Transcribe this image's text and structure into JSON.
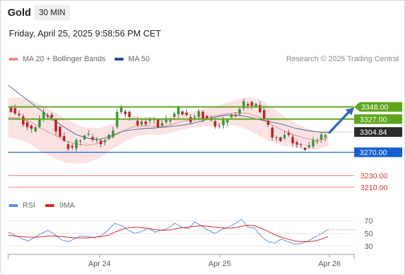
{
  "header": {
    "title": "Gold",
    "timeframe_button": "30 MIN"
  },
  "timestamp": "Friday, April 25, 2025 9:58:56 PM CET",
  "legend": {
    "price": [
      {
        "label": "MA 20 + Bollinger Bands",
        "color": "#f28b8b"
      },
      {
        "label": "MA 50",
        "color": "#1f4e8c"
      }
    ],
    "rsi": [
      {
        "label": "RSI",
        "color": "#5b8fe0"
      },
      {
        "label": "9MA",
        "color": "#e02020"
      }
    ]
  },
  "credit": "Research © 2025 Trading Central",
  "colors": {
    "up": "#2e9e2e",
    "down": "#c82020",
    "resistance": "#5fa51c",
    "support": "#1460d2",
    "target": "#f0807a",
    "arrow": "#2a6bbf"
  },
  "chart_data": [
    {
      "type": "candlestick",
      "title": "Gold",
      "x_ticks": [
        "Apr 24",
        "Apr 25",
        "Apr 26"
      ],
      "y_range": [
        3200,
        3420
      ],
      "series": [
        {
          "name": "MA 20 + Bollinger Bands",
          "values": [
            3330,
            3328,
            3322,
            3310,
            3300,
            3290,
            3284,
            3282,
            3286,
            3296,
            3306,
            3314,
            3316,
            3314,
            3316,
            3322,
            3326,
            3329,
            3332,
            3336,
            3338,
            3337,
            3330,
            3318,
            3308,
            3300,
            3294,
            3290,
            3295
          ]
        },
        {
          "name": "MA 50",
          "values": [
            3385,
            3370,
            3355,
            3340,
            3325,
            3312,
            3300,
            3294,
            3292,
            3298,
            3306,
            3309,
            3311,
            3312,
            3314,
            3316,
            3319,
            3324,
            3330,
            3334,
            3334,
            3331,
            3326,
            3322,
            3318,
            3312,
            3308,
            3305,
            3304
          ]
        }
      ],
      "levels": [
        {
          "label": "3348.00",
          "value": 3348,
          "kind": "resistance"
        },
        {
          "label": "3327.00",
          "value": 3327,
          "kind": "resistance"
        },
        {
          "label": "3304.84",
          "value": 3304.84,
          "kind": "last price"
        },
        {
          "label": "3270.00",
          "value": 3270,
          "kind": "support"
        },
        {
          "label": "3230.00",
          "value": 3230,
          "kind": "target"
        },
        {
          "label": "3210.00",
          "value": 3210,
          "kind": "target"
        }
      ],
      "close_path": [
        3345,
        3333,
        3320,
        3305,
        3322,
        3336,
        3330,
        3304,
        3285,
        3276,
        3290,
        3298,
        3295,
        3288,
        3291,
        3300,
        3345,
        3340,
        3325,
        3318,
        3323,
        3330,
        3317,
        3322,
        3330,
        3343,
        3334,
        3326,
        3338,
        3330,
        3322,
        3313,
        3325,
        3333,
        3342,
        3358,
        3350,
        3348,
        3323,
        3298,
        3292,
        3302,
        3291,
        3280,
        3277,
        3284,
        3294,
        3305
      ]
    },
    {
      "type": "line",
      "title": "RSI",
      "y_ticks": [
        "70",
        "50",
        "30"
      ],
      "x_ticks": [
        "Apr 24",
        "Apr 25",
        "Apr 26"
      ],
      "y_range": [
        20,
        80
      ],
      "series": [
        {
          "name": "RSI",
          "values": [
            52,
            47,
            42,
            38,
            44,
            50,
            55,
            48,
            40,
            37,
            42,
            46,
            45,
            43,
            47,
            55,
            66,
            62,
            55,
            50,
            53,
            58,
            52,
            55,
            58,
            66,
            60,
            57,
            68,
            62,
            55,
            50,
            56,
            60,
            65,
            72,
            60,
            58,
            45,
            37,
            35,
            41,
            37,
            33,
            34,
            38,
            44,
            50,
            56
          ]
        },
        {
          "name": "9MA",
          "values": [
            47,
            46,
            45,
            44,
            44,
            45,
            46,
            46,
            45,
            44,
            43,
            43,
            43,
            44,
            45,
            47,
            52,
            56,
            59,
            60,
            59,
            58,
            56,
            55,
            55,
            57,
            59,
            60,
            61,
            62,
            61,
            60,
            59,
            58,
            59,
            61,
            63,
            62,
            58,
            53,
            48,
            44,
            41,
            38,
            37,
            37,
            38,
            41,
            45
          ]
        }
      ]
    }
  ]
}
